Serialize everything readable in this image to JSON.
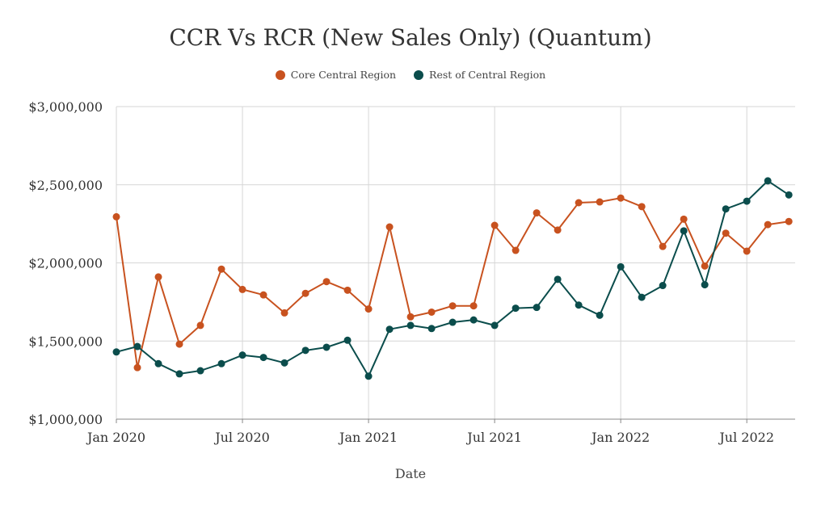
{
  "chart_data": {
    "type": "line",
    "title": "CCR Vs RCR (New Sales Only) (Quantum)",
    "xlabel": "Date",
    "ylabel": "",
    "ylim": [
      1000000,
      3000000
    ],
    "yticks": [
      "$1,000,000",
      "$1,500,000",
      "$2,000,000",
      "$2,500,000",
      "$3,000,000"
    ],
    "ytick_values": [
      1000000,
      1500000,
      2000000,
      2500000,
      3000000
    ],
    "xticks": [
      "Jan 2020",
      "Jul 2020",
      "Jan 2021",
      "Jul 2021",
      "Jan 2022",
      "Jul 2022"
    ],
    "xtick_index": [
      0,
      6,
      12,
      18,
      24,
      30
    ],
    "x": [
      "2020-01",
      "2020-02",
      "2020-03",
      "2020-04",
      "2020-05",
      "2020-06",
      "2020-07",
      "2020-08",
      "2020-09",
      "2020-10",
      "2020-11",
      "2020-12",
      "2021-01",
      "2021-02",
      "2021-03",
      "2021-04",
      "2021-05",
      "2021-06",
      "2021-07",
      "2021-08",
      "2021-09",
      "2021-10",
      "2021-11",
      "2021-12",
      "2022-01",
      "2022-02",
      "2022-03",
      "2022-04",
      "2022-05",
      "2022-06",
      "2022-07",
      "2022-08",
      "2022-09"
    ],
    "grid": true,
    "legend_position": "top-center",
    "series": [
      {
        "name": "Core Central Region",
        "color": "#c8521f",
        "values": [
          2295000,
          1330000,
          1910000,
          1480000,
          1600000,
          1960000,
          1830000,
          1795000,
          1680000,
          1805000,
          1880000,
          1825000,
          1705000,
          2230000,
          1655000,
          1685000,
          1725000,
          1725000,
          2240000,
          2080000,
          2320000,
          2210000,
          2385000,
          2390000,
          2415000,
          2360000,
          2105000,
          2280000,
          1980000,
          2190000,
          2075000,
          2245000,
          2265000
        ]
      },
      {
        "name": "Rest of Central Region",
        "color": "#0b4d4c",
        "values": [
          1430000,
          1465000,
          1355000,
          1290000,
          1310000,
          1355000,
          1410000,
          1395000,
          1360000,
          1440000,
          1460000,
          1505000,
          1275000,
          1575000,
          1600000,
          1580000,
          1620000,
          1635000,
          1600000,
          1710000,
          1715000,
          1895000,
          1730000,
          1665000,
          1975000,
          1780000,
          1855000,
          2205000,
          1860000,
          2345000,
          2395000,
          2525000,
          2435000
        ]
      }
    ]
  }
}
